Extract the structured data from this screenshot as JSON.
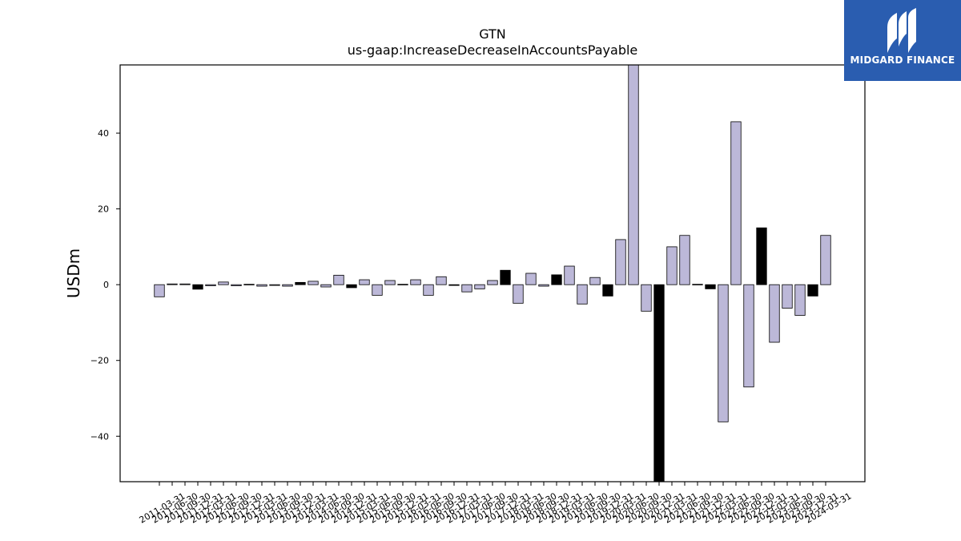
{
  "brand": {
    "name": "MIDGARD FINANCE",
    "bg_color": "#2a5db0"
  },
  "chart_data": {
    "type": "bar",
    "title": "GTN",
    "subtitle": "us-gaap:IncreaseDecreaseInAccountsPayable",
    "xlabel": "",
    "ylabel": "USDm",
    "ylim": [
      -52,
      58
    ],
    "yticks": [
      -40,
      -20,
      0,
      20,
      40
    ],
    "grid": false,
    "legend": "none",
    "colors": {
      "default": "#bcb8d8",
      "highlight": "#000000",
      "edge": "#000000"
    },
    "categories": [
      "2011-03-31",
      "2011-06-30",
      "2011-09-30",
      "2011-12-31",
      "2012-03-31",
      "2012-06-30",
      "2012-09-30",
      "2012-12-31",
      "2013-03-31",
      "2013-06-30",
      "2013-09-30",
      "2013-12-31",
      "2014-03-31",
      "2014-06-30",
      "2014-09-30",
      "2014-12-31",
      "2015-03-31",
      "2015-06-30",
      "2015-09-30",
      "2015-12-31",
      "2016-03-31",
      "2016-06-30",
      "2016-09-30",
      "2016-12-31",
      "2017-03-31",
      "2017-06-30",
      "2017-09-30",
      "2017-12-31",
      "2018-03-31",
      "2018-06-30",
      "2018-09-30",
      "2018-12-31",
      "2019-03-31",
      "2019-06-30",
      "2019-09-30",
      "2019-12-31",
      "2020-03-31",
      "2020-06-30",
      "2020-09-30",
      "2020-12-31",
      "2021-03-31",
      "2021-06-30",
      "2021-09-30",
      "2021-12-31",
      "2022-03-31",
      "2022-06-30",
      "2022-09-30",
      "2022-12-31",
      "2023-03-31",
      "2023-06-30",
      "2023-09-30",
      "2023-12-31",
      "2024-03-31"
    ],
    "values": [
      -3.2,
      0.2,
      0.2,
      -1.2,
      -0.3,
      0.7,
      -0.3,
      0.1,
      -0.4,
      -0.2,
      -0.4,
      0.6,
      0.9,
      -0.6,
      2.5,
      -0.8,
      1.3,
      -2.8,
      1.1,
      0.1,
      1.3,
      -2.8,
      2.1,
      -0.2,
      -1.9,
      -1.1,
      1.1,
      3.8,
      -4.9,
      3.0,
      -0.4,
      2.6,
      4.9,
      -5.1,
      1.9,
      -3.0,
      11.9,
      59.0,
      -7.0,
      -54.0,
      10.0,
      13.0,
      0.1,
      -1.1,
      -36.2,
      43.0,
      -27.0,
      15.0,
      -15.2,
      -6.2,
      -8.1,
      -3.0,
      13.0
    ],
    "highlight": [
      false,
      false,
      false,
      true,
      false,
      false,
      false,
      false,
      false,
      false,
      false,
      true,
      false,
      false,
      false,
      true,
      false,
      false,
      false,
      false,
      false,
      false,
      false,
      true,
      false,
      false,
      false,
      true,
      false,
      false,
      false,
      true,
      false,
      false,
      false,
      true,
      false,
      false,
      false,
      true,
      false,
      false,
      false,
      true,
      false,
      false,
      false,
      true,
      false,
      false,
      false,
      true,
      false
    ]
  }
}
